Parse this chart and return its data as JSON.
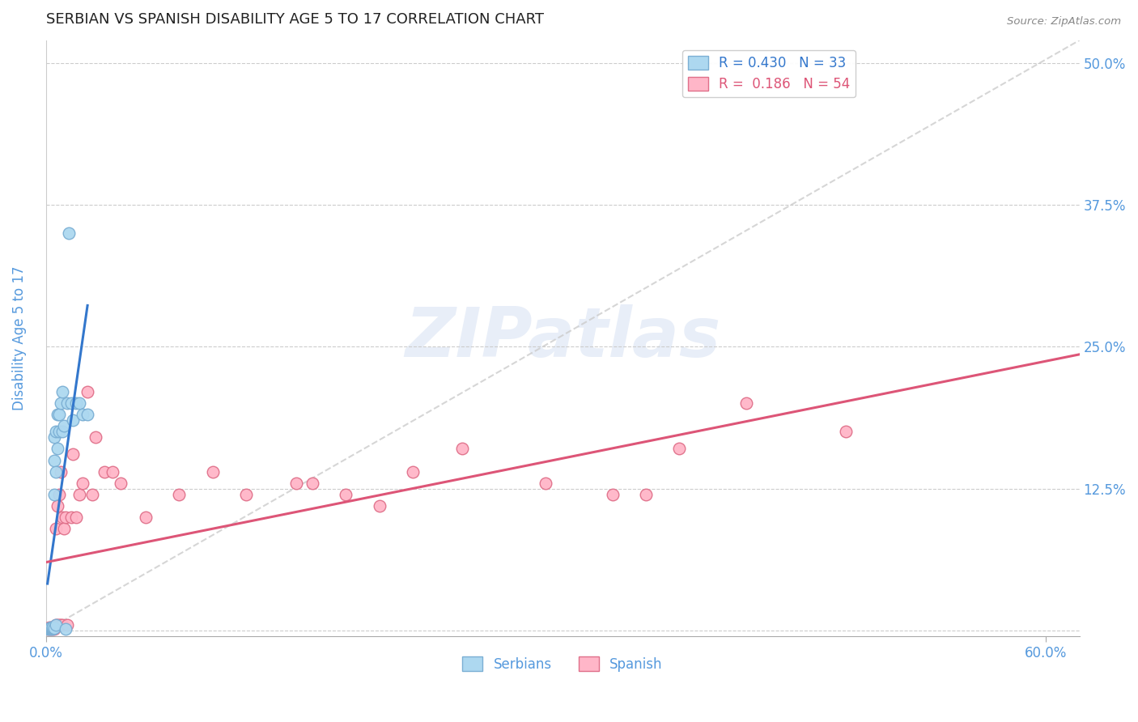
{
  "title": "SERBIAN VS SPANISH DISABILITY AGE 5 TO 17 CORRELATION CHART",
  "source": "Source: ZipAtlas.com",
  "ylabel": "Disability Age 5 to 17",
  "ytick_vals": [
    0.0,
    0.125,
    0.25,
    0.375,
    0.5
  ],
  "ytick_labels": [
    "",
    "12.5%",
    "25.0%",
    "37.5%",
    "50.0%"
  ],
  "xtick_vals": [
    0.0,
    0.6
  ],
  "xtick_labels": [
    "0.0%",
    "60.0%"
  ],
  "xlim": [
    0.0,
    0.62
  ],
  "ylim": [
    -0.005,
    0.52
  ],
  "legend_r_serbian": "0.430",
  "legend_n_serbian": "33",
  "legend_r_spanish": "0.186",
  "legend_n_spanish": "54",
  "serbian_color": "#ADD8F0",
  "serbian_edge_color": "#7BAFD4",
  "spanish_color": "#FFB6C8",
  "spanish_edge_color": "#E0708A",
  "serbian_line_color": "#3377CC",
  "spanish_line_color": "#DD5577",
  "diagonal_line_color": "#CCCCCC",
  "watermark_text": "ZIPatlas",
  "watermark_color": "#E8EEF8",
  "title_color": "#222222",
  "tick_color": "#5599DD",
  "background_color": "#FFFFFF",
  "serbian_x": [
    0.001,
    0.002,
    0.002,
    0.003,
    0.003,
    0.003,
    0.004,
    0.004,
    0.004,
    0.005,
    0.005,
    0.005,
    0.005,
    0.006,
    0.006,
    0.006,
    0.007,
    0.007,
    0.008,
    0.008,
    0.009,
    0.01,
    0.01,
    0.011,
    0.012,
    0.013,
    0.014,
    0.015,
    0.016,
    0.018,
    0.02,
    0.022,
    0.025
  ],
  "serbian_y": [
    0.001,
    0.001,
    0.002,
    0.001,
    0.002,
    0.003,
    0.001,
    0.002,
    0.003,
    0.002,
    0.12,
    0.15,
    0.17,
    0.005,
    0.14,
    0.175,
    0.16,
    0.19,
    0.175,
    0.19,
    0.2,
    0.175,
    0.21,
    0.18,
    0.001,
    0.2,
    0.35,
    0.2,
    0.185,
    0.2,
    0.2,
    0.19,
    0.19
  ],
  "spanish_x": [
    0.001,
    0.001,
    0.002,
    0.002,
    0.002,
    0.003,
    0.003,
    0.003,
    0.004,
    0.004,
    0.004,
    0.005,
    0.005,
    0.005,
    0.006,
    0.006,
    0.007,
    0.007,
    0.008,
    0.008,
    0.009,
    0.009,
    0.01,
    0.01,
    0.011,
    0.012,
    0.013,
    0.015,
    0.016,
    0.018,
    0.02,
    0.022,
    0.025,
    0.028,
    0.03,
    0.035,
    0.04,
    0.045,
    0.06,
    0.08,
    0.1,
    0.12,
    0.15,
    0.16,
    0.18,
    0.2,
    0.22,
    0.25,
    0.3,
    0.34,
    0.36,
    0.38,
    0.42,
    0.48
  ],
  "spanish_y": [
    0.001,
    0.002,
    0.001,
    0.002,
    0.003,
    0.001,
    0.002,
    0.003,
    0.001,
    0.002,
    0.003,
    0.001,
    0.002,
    0.003,
    0.005,
    0.09,
    0.005,
    0.11,
    0.12,
    0.005,
    0.14,
    0.005,
    0.1,
    0.005,
    0.09,
    0.1,
    0.005,
    0.1,
    0.155,
    0.1,
    0.12,
    0.13,
    0.21,
    0.12,
    0.17,
    0.14,
    0.14,
    0.13,
    0.1,
    0.12,
    0.14,
    0.12,
    0.13,
    0.13,
    0.12,
    0.11,
    0.14,
    0.16,
    0.13,
    0.12,
    0.12,
    0.16,
    0.2,
    0.175
  ]
}
